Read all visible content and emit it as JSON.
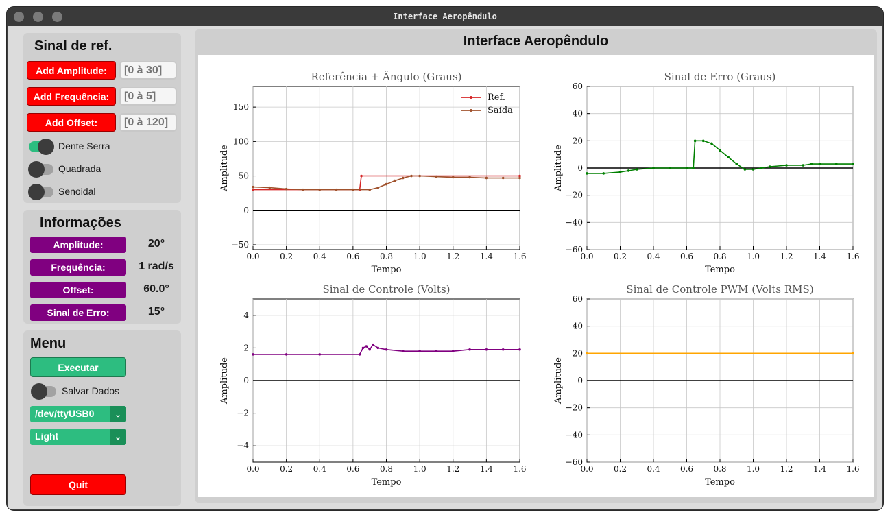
{
  "window": {
    "title": "Interface Aeropêndulo"
  },
  "ref_panel": {
    "title": "Sinal de ref.",
    "amplitude": {
      "button": "Add Amplitude:",
      "placeholder": "[0 à 30]"
    },
    "frequency": {
      "button": "Add Frequência:",
      "placeholder": "[0 à 5]"
    },
    "offset": {
      "button": "Add Offset:",
      "placeholder": "[0 à 120]"
    },
    "waves": [
      {
        "label": "Dente Serra",
        "on": true
      },
      {
        "label": "Quadrada",
        "on": false
      },
      {
        "label": "Senoidal",
        "on": false
      }
    ]
  },
  "info_panel": {
    "title": "Informações",
    "rows": [
      {
        "label": "Amplitude:",
        "value": "20°"
      },
      {
        "label": "Frequência:",
        "value": "1 rad/s"
      },
      {
        "label": "Offset:",
        "value": "60.0°"
      },
      {
        "label": "Sinal de Erro:",
        "value": "15°"
      }
    ]
  },
  "menu": {
    "title": "Menu",
    "run_label": "Executar",
    "save_label": "Salvar Dados",
    "save_on": false,
    "port_value": "/dev/ttyUSB0",
    "theme_value": "Light",
    "quit_label": "Quit"
  },
  "main": {
    "header": "Interface Aeropêndulo"
  },
  "colors": {
    "red": "#fe0000",
    "purple": "#800080",
    "green": "#2dbd80"
  },
  "chart_data": [
    {
      "type": "line",
      "title": "Referência + Ângulo (Graus)",
      "xlabel": "Tempo",
      "ylabel": "Amplitude",
      "xlim": [
        0,
        1.6
      ],
      "ylim": [
        -57,
        180
      ],
      "xticks": [
        0.0,
        0.2,
        0.4,
        0.6,
        0.8,
        1.0,
        1.2,
        1.4,
        1.6
      ],
      "yticks": [
        -50,
        0,
        50,
        100,
        150
      ],
      "grid": true,
      "legend": "top-right",
      "series": [
        {
          "name": "Ref.",
          "color": "#d62728",
          "x": [
            0,
            0.64,
            0.65,
            1.6
          ],
          "y": [
            30,
            30,
            50,
            50
          ]
        },
        {
          "name": "Saída",
          "color": "#a0522d",
          "x": [
            0,
            0.1,
            0.2,
            0.3,
            0.4,
            0.5,
            0.6,
            0.7,
            0.75,
            0.8,
            0.85,
            0.9,
            0.95,
            1.0,
            1.1,
            1.2,
            1.3,
            1.4,
            1.5,
            1.6
          ],
          "y": [
            34,
            33,
            31,
            30,
            30,
            30,
            30,
            30,
            33,
            38,
            43,
            47,
            50,
            50,
            49,
            48,
            48,
            47,
            47,
            47
          ]
        }
      ]
    },
    {
      "type": "line",
      "title": "Sinal de Erro (Graus)",
      "xlabel": "Tempo",
      "ylabel": "Amplitude",
      "xlim": [
        0,
        1.6
      ],
      "ylim": [
        -60,
        60
      ],
      "xticks": [
        0.0,
        0.2,
        0.4,
        0.6,
        0.8,
        1.0,
        1.2,
        1.4,
        1.6
      ],
      "yticks": [
        -60,
        -40,
        -20,
        0,
        20,
        40,
        60
      ],
      "grid": true,
      "series": [
        {
          "name": "",
          "color": "#008000",
          "x": [
            0,
            0.1,
            0.2,
            0.25,
            0.3,
            0.4,
            0.5,
            0.6,
            0.64,
            0.65,
            0.7,
            0.75,
            0.8,
            0.85,
            0.9,
            0.95,
            1.0,
            1.05,
            1.1,
            1.2,
            1.3,
            1.35,
            1.4,
            1.5,
            1.6
          ],
          "y": [
            -4,
            -4,
            -3,
            -2,
            -1,
            0,
            0,
            0,
            0,
            20,
            20,
            18,
            13,
            8,
            3,
            -1,
            -1,
            0,
            1,
            2,
            2,
            3,
            3,
            3,
            3
          ]
        }
      ]
    },
    {
      "type": "line",
      "title": "Sinal de Controle (Volts)",
      "xlabel": "Tempo",
      "ylabel": "Amplitude",
      "xlim": [
        0,
        1.6
      ],
      "ylim": [
        -5,
        5
      ],
      "xticks": [
        0.0,
        0.2,
        0.4,
        0.6,
        0.8,
        1.0,
        1.2,
        1.4,
        1.6
      ],
      "yticks": [
        -4,
        -2,
        0,
        2,
        4
      ],
      "grid": true,
      "series": [
        {
          "name": "",
          "color": "#800080",
          "x": [
            0,
            0.2,
            0.4,
            0.64,
            0.66,
            0.68,
            0.7,
            0.72,
            0.75,
            0.8,
            0.9,
            1.0,
            1.1,
            1.2,
            1.3,
            1.4,
            1.5,
            1.6
          ],
          "y": [
            1.6,
            1.6,
            1.6,
            1.6,
            2.0,
            2.1,
            1.9,
            2.2,
            2.0,
            1.9,
            1.8,
            1.8,
            1.8,
            1.8,
            1.9,
            1.9,
            1.9,
            1.9
          ]
        }
      ]
    },
    {
      "type": "line",
      "title": "Sinal de Controle PWM (Volts RMS)",
      "xlabel": "Tempo",
      "ylabel": "Amplitude",
      "xlim": [
        0,
        1.6
      ],
      "ylim": [
        -60,
        60
      ],
      "xticks": [
        0.0,
        0.2,
        0.4,
        0.6,
        0.8,
        1.0,
        1.2,
        1.4,
        1.6
      ],
      "yticks": [
        -60,
        -40,
        -20,
        0,
        20,
        40,
        60
      ],
      "grid": true,
      "series": [
        {
          "name": "",
          "color": "#ffa500",
          "x": [
            0,
            1.6
          ],
          "y": [
            20,
            20
          ]
        }
      ]
    }
  ]
}
